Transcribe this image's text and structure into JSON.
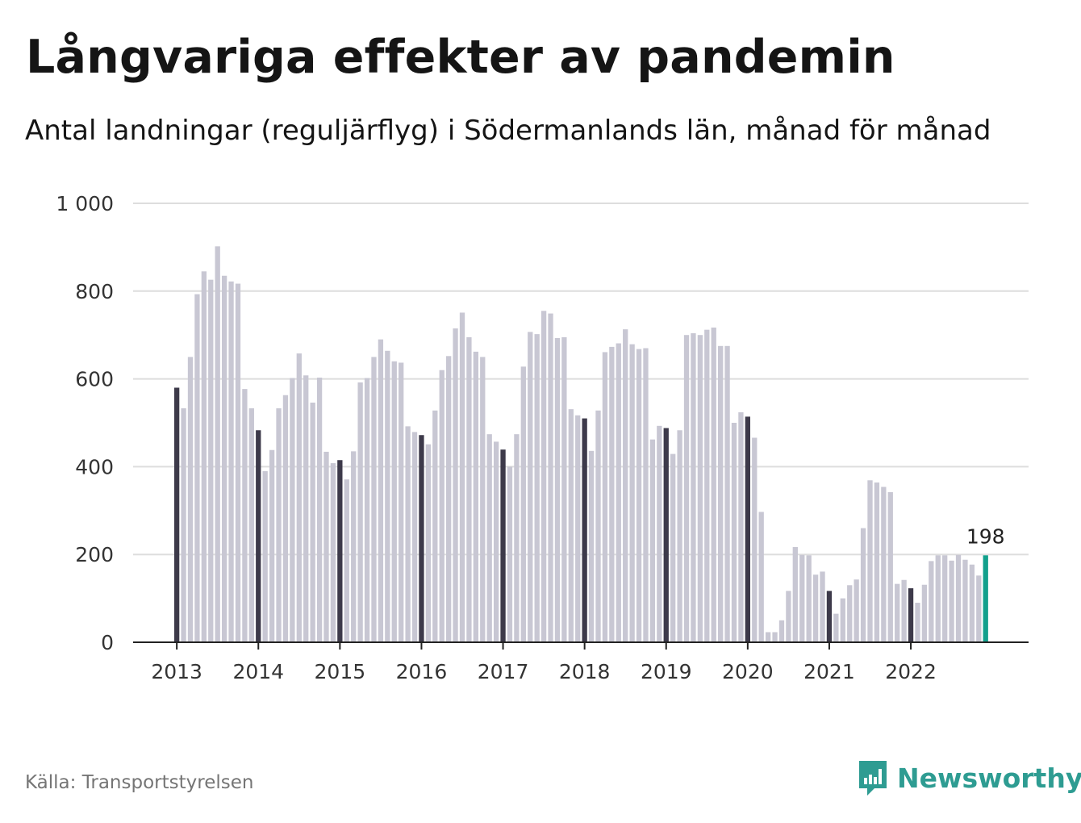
{
  "title": "Långvariga effekter av pandemin",
  "subtitle": "Antal landningar (reguljärflyg) i Södermanlands län, månad för månad",
  "source": "Källa: Transportstyrelsen",
  "brand": {
    "name": "Newsworthy",
    "icon": "newsworthy-logo-icon"
  },
  "colors": {
    "bar": "#c8c7d3",
    "january": "#3d3a4a",
    "latest": "#12a08c",
    "grid": "#dddddd",
    "axis": "#222222",
    "brand": "#2e9c92"
  },
  "chart_data": {
    "type": "bar",
    "ylim": [
      0,
      1000
    ],
    "yticks": [
      0,
      200,
      400,
      600,
      800,
      1000
    ],
    "ytick_labels": [
      "0",
      "200",
      "400",
      "600",
      "800",
      "1 000"
    ],
    "xtick_labels": [
      "2013",
      "2014",
      "2015",
      "2016",
      "2017",
      "2018",
      "2019",
      "2020",
      "2021",
      "2022"
    ],
    "grid": true,
    "legend": "none",
    "highlight": "January bars dark, latest month highlighted",
    "series": [
      {
        "x_start": "2013-01",
        "frequency": "monthly",
        "values": [
          580,
          533,
          650,
          793,
          845,
          826,
          902,
          835,
          822,
          817,
          577,
          533,
          483,
          390,
          438,
          533,
          563,
          602,
          658,
          608,
          546,
          603,
          434,
          408,
          415,
          371,
          435,
          592,
          602,
          650,
          690,
          664,
          640,
          637,
          492,
          479,
          472,
          451,
          528,
          620,
          652,
          715,
          751,
          695,
          662,
          650,
          474,
          457,
          439,
          400,
          474,
          628,
          707,
          702,
          755,
          749,
          693,
          695,
          531,
          517,
          510,
          436,
          528,
          661,
          673,
          681,
          713,
          679,
          668,
          670,
          462,
          493,
          488,
          429,
          483,
          700,
          704,
          700,
          712,
          717,
          675,
          675,
          500,
          524,
          514,
          466,
          297,
          23,
          23,
          50,
          117,
          217,
          199,
          198,
          154,
          161,
          117,
          65,
          100,
          130,
          143,
          260,
          369,
          364,
          354,
          342,
          133,
          142,
          123,
          90,
          131,
          185,
          198,
          198,
          186,
          199,
          188,
          177,
          152,
          198
        ]
      }
    ],
    "data_labels": [
      {
        "x": "2022-12",
        "text": "198"
      }
    ]
  }
}
